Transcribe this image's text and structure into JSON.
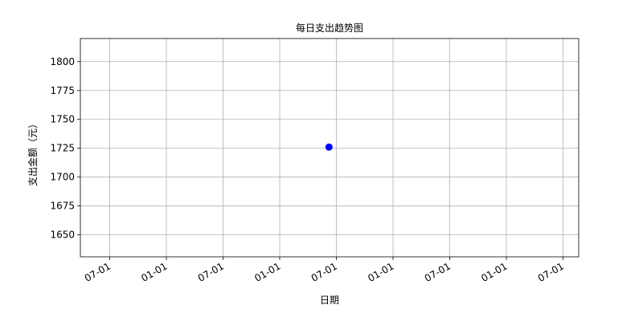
{
  "chart_data": {
    "type": "scatter",
    "title": "每日支出趋势图",
    "xlabel": "日期",
    "ylabel": "支出金额（元）",
    "x_tick_labels": [
      "07-01",
      "01-01",
      "07-01",
      "01-01",
      "07-01",
      "01-01",
      "07-01",
      "01-01",
      "07-01"
    ],
    "y_ticks": [
      1650,
      1675,
      1700,
      1725,
      1750,
      1775,
      1800
    ],
    "ylim": [
      1631,
      1820
    ],
    "grid": true,
    "point": {
      "x_tick_position": 3.87,
      "y": 1726
    },
    "colors": {
      "marker": "#0000ff",
      "grid": "#b0b0b0",
      "axes": "#000000"
    }
  }
}
